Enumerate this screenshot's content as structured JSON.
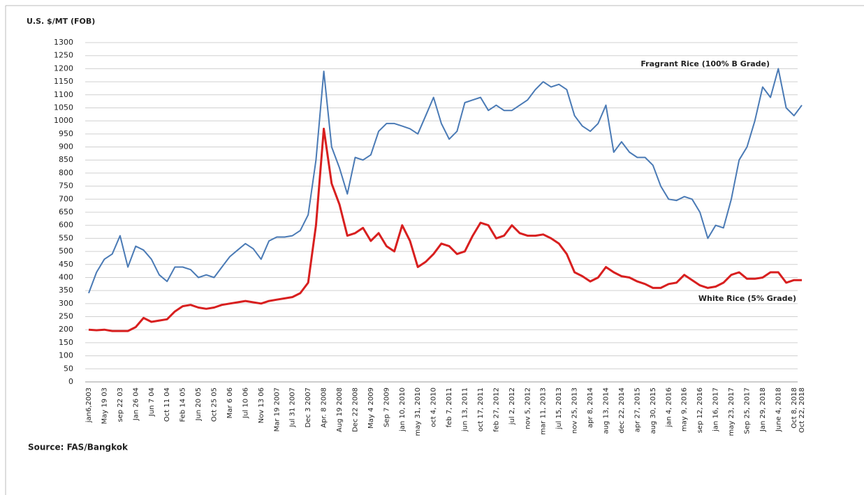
{
  "chart_data": {
    "type": "line",
    "y_label": "U.S. $/MT (FOB)",
    "source": "Source: FAS/Bangkok",
    "categories": [
      "jan6,2003",
      null,
      "May 19 03",
      null,
      "sep 22 03",
      null,
      "Jan 26 04",
      null,
      "Jun 7 04",
      null,
      "Oct 11 04",
      null,
      "Feb 14 05",
      null,
      "Jun 20 05",
      null,
      "Oct 25 05",
      null,
      "Mar 6 06",
      null,
      "Jul 10 06",
      null,
      "Nov 13 06",
      null,
      "Mar 19 2007",
      null,
      "Jul 31 2007",
      null,
      "Dec 3 2007",
      null,
      "Apr. 8 2008",
      null,
      "Aug 19 2008",
      null,
      "Dec 22 2008",
      null,
      "May 4 2009",
      null,
      "Sep 7 2009",
      null,
      "jan 10, 2010",
      null,
      "may 31, 2010",
      null,
      "oct 4, 2010",
      null,
      "feb 7, 2011",
      null,
      "jun 13, 2011",
      null,
      "oct 17, 2011",
      null,
      "feb 27, 2012",
      null,
      "jul 2, 2012",
      null,
      "nov 5, 2012",
      null,
      "mar 11, 2013",
      null,
      "jul 15, 2013",
      null,
      "nov 25, 2013",
      null,
      "apr 8, 2014",
      null,
      "aug 13, 2014",
      null,
      "dec 22, 2014",
      null,
      "apr 27, 2015",
      null,
      "aug 30, 2015",
      null,
      "jan 4, 2016",
      null,
      "may 9, 2016",
      null,
      "sep 12, 2016",
      null,
      "jan 16, 2017",
      null,
      "may 23, 2017",
      null,
      "Sep 25, 2017",
      null,
      "Jan 29, 2018",
      null,
      "June 4, 2018",
      null,
      "Oct 8, 2018",
      "Oct 22, 2018"
    ],
    "series": [
      {
        "name": "Fragrant Rice (100% B Grade)",
        "color": "#4a7ab5",
        "values": [
          340,
          420,
          470,
          490,
          560,
          440,
          520,
          505,
          470,
          410,
          385,
          440,
          440,
          430,
          400,
          410,
          400,
          440,
          480,
          505,
          530,
          510,
          470,
          540,
          555,
          555,
          560,
          580,
          640,
          850,
          1190,
          900,
          820,
          720,
          860,
          850,
          870,
          960,
          990,
          990,
          980,
          970,
          950,
          1020,
          1090,
          990,
          930,
          960,
          1070,
          1080,
          1090,
          1040,
          1060,
          1040,
          1040,
          1060,
          1080,
          1120,
          1150,
          1130,
          1140,
          1120,
          1020,
          980,
          960,
          990,
          1060,
          880,
          920,
          880,
          860,
          860,
          830,
          750,
          700,
          695,
          710,
          700,
          650,
          550,
          600,
          590,
          700,
          850,
          900,
          1000,
          1130,
          1090,
          1200,
          1050,
          1020,
          1060
        ]
      },
      {
        "name": "White Rice (5% Grade)",
        "color": "#d81f1f",
        "values": [
          200,
          198,
          200,
          195,
          195,
          195,
          210,
          245,
          230,
          235,
          240,
          270,
          290,
          295,
          285,
          280,
          285,
          295,
          300,
          305,
          310,
          305,
          300,
          310,
          315,
          320,
          325,
          340,
          380,
          600,
          970,
          760,
          680,
          560,
          570,
          590,
          540,
          570,
          520,
          500,
          600,
          540,
          440,
          460,
          490,
          530,
          520,
          490,
          500,
          560,
          610,
          600,
          550,
          560,
          600,
          570,
          560,
          560,
          565,
          550,
          530,
          490,
          420,
          405,
          385,
          400,
          440,
          420,
          405,
          400,
          385,
          375,
          360,
          360,
          375,
          380,
          410,
          390,
          370,
          360,
          365,
          380,
          410,
          420,
          395,
          395,
          400,
          420,
          420,
          380,
          390,
          390
        ]
      }
    ],
    "ylim": [
      0,
      1300
    ],
    "yticks": [
      0,
      50,
      100,
      150,
      200,
      250,
      300,
      350,
      400,
      450,
      500,
      550,
      600,
      650,
      700,
      750,
      800,
      850,
      900,
      950,
      1000,
      1050,
      1100,
      1150,
      1200,
      1250,
      1300
    ],
    "grid": true
  }
}
